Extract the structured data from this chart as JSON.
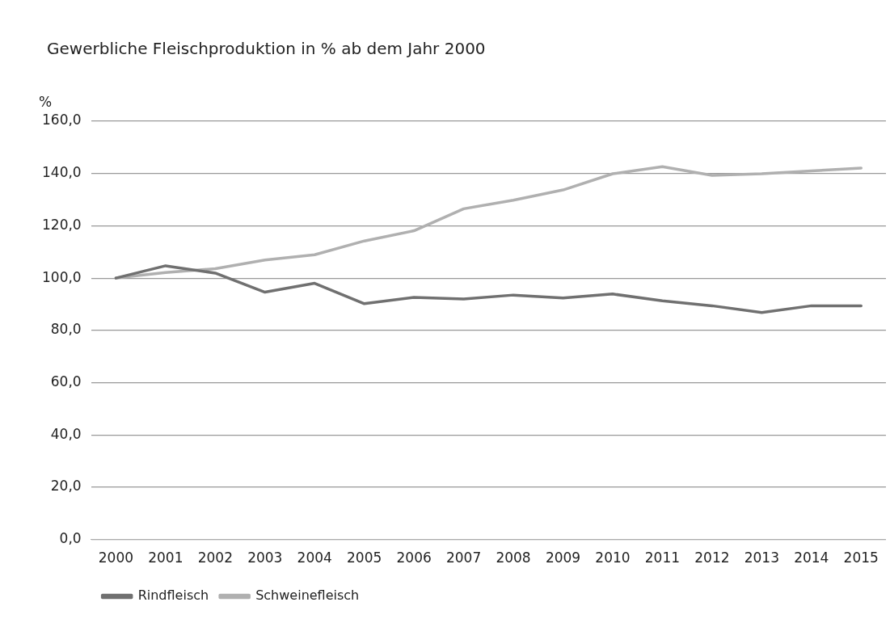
{
  "chart_data": {
    "type": "line",
    "title": "Gewerbliche Fleischproduktion in % ab dem Jahr 2000",
    "ylabel": "%",
    "categories": [
      "2000",
      "2001",
      "2002",
      "2003",
      "2004",
      "2005",
      "2006",
      "2007",
      "2008",
      "2009",
      "2010",
      "2011",
      "2012",
      "2013",
      "2014",
      "2015"
    ],
    "series": [
      {
        "name": "Rindfleisch",
        "color": "#707070",
        "values": [
          100,
          104.7,
          101.9,
          94.6,
          98,
          90.2,
          92.6,
          92,
          93.5,
          92.4,
          93.9,
          91.3,
          89.4,
          86.8,
          89.4,
          89.4
        ]
      },
      {
        "name": "Schweinefleisch",
        "color": "#b0b0b0",
        "values": [
          100,
          102.1,
          103.6,
          106.9,
          108.9,
          114.2,
          118.1,
          126.5,
          129.8,
          133.7,
          139.9,
          142.6,
          139.3,
          139.9,
          141,
          142.1
        ]
      }
    ],
    "ylim": [
      0,
      160
    ],
    "yticks": [
      {
        "value": 0,
        "label": "0,0"
      },
      {
        "value": 20,
        "label": "20,0"
      },
      {
        "value": 40,
        "label": "40,0"
      },
      {
        "value": 60,
        "label": "60,0"
      },
      {
        "value": 80,
        "label": "80,0"
      },
      {
        "value": 100,
        "label": "100,0"
      },
      {
        "value": 120,
        "label": "120,0"
      },
      {
        "value": 140,
        "label": "140,0"
      },
      {
        "value": 160,
        "label": "160,0"
      }
    ],
    "grid": "y",
    "legend": "bottom left",
    "marker": "none",
    "line_style": "solid"
  }
}
